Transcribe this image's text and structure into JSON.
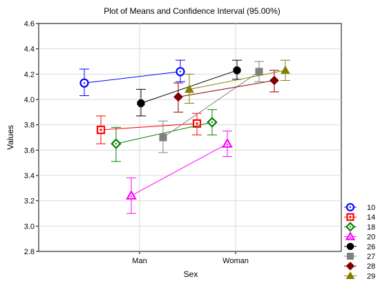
{
  "chart_data": {
    "type": "line",
    "title": "Plot of Means and Confidence Interval (95.00%)",
    "xlabel": "Sex",
    "ylabel": "Values",
    "categories": [
      "Man",
      "Woman"
    ],
    "ylim": [
      2.8,
      4.6
    ],
    "yticks": [
      "2.8",
      "3.0",
      "3.2",
      "3.4",
      "3.6",
      "3.8",
      "4.0",
      "4.2",
      "4.4",
      "4.6"
    ],
    "grid": true,
    "legend_position": "bottom-right",
    "series": [
      {
        "name": "10",
        "color": "#0000ff",
        "marker": "circle",
        "values": [
          4.13,
          4.22
        ],
        "ci_low": [
          4.03,
          4.14
        ],
        "ci_high": [
          4.24,
          4.31
        ]
      },
      {
        "name": "14",
        "color": "#ff0000",
        "marker": "square",
        "values": [
          3.76,
          3.81
        ],
        "ci_low": [
          3.65,
          3.72
        ],
        "ci_high": [
          3.87,
          3.89
        ]
      },
      {
        "name": "18",
        "color": "#008000",
        "marker": "diamond",
        "values": [
          3.65,
          3.82
        ],
        "ci_low": [
          3.51,
          3.72
        ],
        "ci_high": [
          3.78,
          3.92
        ]
      },
      {
        "name": "20",
        "color": "#ff00ff",
        "marker": "triangle",
        "values": [
          3.24,
          3.65
        ],
        "ci_low": [
          3.1,
          3.55
        ],
        "ci_high": [
          3.38,
          3.75
        ]
      },
      {
        "name": "26",
        "color": "#000000",
        "marker": "octagon",
        "values": [
          3.97,
          4.23
        ],
        "ci_low": [
          3.87,
          4.16
        ],
        "ci_high": [
          4.08,
          4.31
        ]
      },
      {
        "name": "27",
        "color": "#808080",
        "marker": "square",
        "values": [
          3.7,
          4.22
        ],
        "ci_low": [
          3.58,
          4.14
        ],
        "ci_high": [
          3.83,
          4.3
        ]
      },
      {
        "name": "28",
        "color": "#800000",
        "marker": "diamond",
        "values": [
          4.02,
          4.15
        ],
        "ci_low": [
          3.9,
          4.06
        ],
        "ci_high": [
          4.13,
          4.23
        ]
      },
      {
        "name": "29",
        "color": "#808000",
        "marker": "triangle",
        "values": [
          4.08,
          4.23
        ],
        "ci_low": [
          3.97,
          4.15
        ],
        "ci_high": [
          4.2,
          4.31
        ]
      }
    ]
  }
}
